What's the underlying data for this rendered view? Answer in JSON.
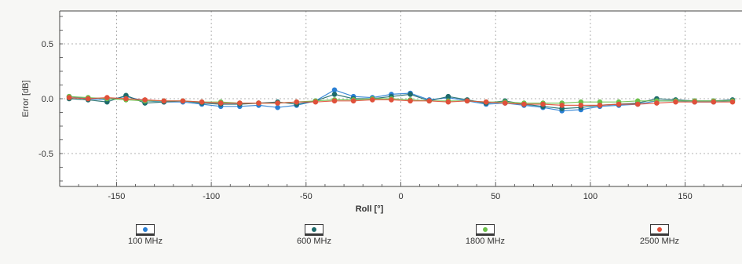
{
  "chart_data": {
    "type": "line",
    "xlabel": "Roll [°]",
    "ylabel": "Error [dB]",
    "xlim": [
      -180,
      180
    ],
    "ylim": [
      -0.8,
      0.8
    ],
    "xticks": [
      "-150",
      "-100",
      "-50",
      "0",
      "50",
      "100",
      "150"
    ],
    "yticks": [
      "0.5",
      "0.0",
      "-0.5"
    ],
    "grid": true,
    "legend_position": "bottom",
    "x": [
      -175,
      -165,
      -155,
      -145,
      -135,
      -125,
      -115,
      -105,
      -95,
      -85,
      -75,
      -65,
      -55,
      -45,
      -35,
      -25,
      -15,
      -5,
      5,
      15,
      25,
      35,
      45,
      55,
      65,
      75,
      85,
      95,
      105,
      115,
      125,
      135,
      145,
      155,
      165,
      175
    ],
    "series": [
      {
        "name": "100 MHz",
        "color": "#2a7fd4",
        "values": [
          0.02,
          0.0,
          -0.01,
          0.02,
          -0.02,
          -0.03,
          -0.03,
          -0.05,
          -0.07,
          -0.07,
          -0.06,
          -0.08,
          -0.06,
          -0.02,
          0.08,
          0.02,
          0.01,
          0.04,
          0.05,
          -0.01,
          0.01,
          -0.02,
          -0.05,
          -0.04,
          -0.06,
          -0.08,
          -0.11,
          -0.1,
          -0.07,
          -0.06,
          -0.05,
          -0.02,
          -0.02,
          -0.03,
          -0.03,
          -0.02
        ]
      },
      {
        "name": "600 MHz",
        "color": "#1e6b6b",
        "values": [
          0.0,
          -0.01,
          -0.03,
          0.03,
          -0.04,
          -0.03,
          -0.02,
          -0.04,
          -0.05,
          -0.05,
          -0.04,
          -0.03,
          -0.05,
          -0.02,
          0.04,
          0.0,
          0.0,
          0.02,
          0.04,
          -0.02,
          0.02,
          -0.01,
          -0.04,
          -0.02,
          -0.05,
          -0.07,
          -0.09,
          -0.08,
          -0.06,
          -0.05,
          -0.04,
          0.0,
          -0.01,
          -0.02,
          -0.02,
          -0.01
        ]
      },
      {
        "name": "1800 MHz",
        "color": "#6cc04a",
        "values": [
          0.02,
          0.01,
          0.0,
          -0.01,
          -0.02,
          -0.02,
          -0.02,
          -0.03,
          -0.03,
          -0.04,
          -0.04,
          -0.04,
          -0.03,
          -0.02,
          -0.01,
          -0.01,
          0.0,
          0.0,
          -0.01,
          -0.02,
          -0.02,
          -0.02,
          -0.03,
          -0.03,
          -0.04,
          -0.04,
          -0.04,
          -0.03,
          -0.03,
          -0.03,
          -0.02,
          -0.02,
          -0.02,
          -0.02,
          -0.02,
          -0.02
        ]
      },
      {
        "name": "2500 MHz",
        "color": "#e0503a",
        "values": [
          0.01,
          0.0,
          0.01,
          0.0,
          -0.01,
          -0.02,
          -0.02,
          -0.03,
          -0.04,
          -0.04,
          -0.04,
          -0.04,
          -0.03,
          -0.03,
          -0.02,
          -0.02,
          -0.01,
          -0.01,
          -0.02,
          -0.02,
          -0.03,
          -0.02,
          -0.03,
          -0.04,
          -0.05,
          -0.05,
          -0.06,
          -0.06,
          -0.06,
          -0.05,
          -0.05,
          -0.04,
          -0.03,
          -0.03,
          -0.03,
          -0.03
        ]
      }
    ]
  }
}
